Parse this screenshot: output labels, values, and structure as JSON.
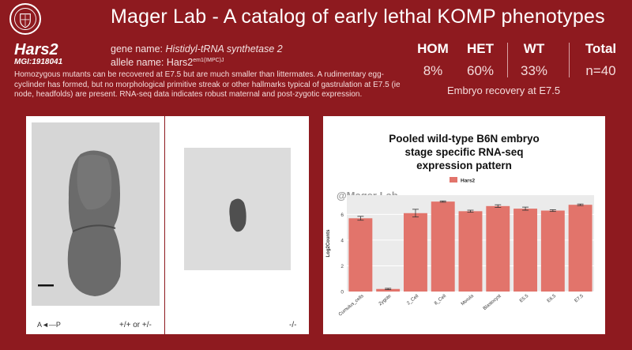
{
  "header": {
    "title": "Mager Lab - A catalog of early lethal KOMP phenotypes"
  },
  "gene": {
    "symbol": "Hars2",
    "mgi_id": "MGI:1918041",
    "name_label": "gene name:",
    "name_value": "Histidyl-tRNA synthetase 2",
    "allele_label": "allele name:",
    "allele_base": "Hars2",
    "allele_sup": "em1(IMPC)J",
    "description": "Homozygous mutants can be recovered at E7.5 but are much smaller than littermates.  A rudimentary egg-cyclinder has formed, but no morphological primitive streak or other hallmarks typical of gastrulation at E7.5 (ie node, headfolds) are present. RNA-seq data indicates robust maternal and post-zygotic expression."
  },
  "stats": {
    "headers": [
      "HOM",
      "HET",
      "WT",
      "Total"
    ],
    "values": [
      "8%",
      "60%",
      "33%",
      "n=40"
    ],
    "caption": "Embryo recovery at E7.5"
  },
  "images": {
    "axis_label": "A◄—P",
    "genotype_left": "+/+ or +/-",
    "genotype_right": "-/-"
  },
  "chart": {
    "title_lines": [
      "Pooled wild-type B6N embryo",
      "stage specific RNA-seq",
      "expression pattern"
    ],
    "watermark": "@Mager Lab"
  },
  "chart_data": {
    "type": "bar",
    "title": "Pooled wild-type B6N embryo stage specific RNA-seq expression pattern",
    "xlabel": "",
    "ylabel": "Log2Counts",
    "categories": [
      "Cumulus_cells",
      "Zygote",
      "2_Cell",
      "8_Cell",
      "Morula",
      "Blastocyst",
      "E5.5",
      "E6.5",
      "E7.5"
    ],
    "series": [
      {
        "name": "Hars2",
        "values": [
          5.7,
          0.2,
          6.1,
          7.0,
          6.25,
          6.65,
          6.45,
          6.3,
          6.75
        ],
        "errors": [
          0.15,
          0.05,
          0.3,
          0.05,
          0.08,
          0.1,
          0.12,
          0.07,
          0.06
        ]
      }
    ],
    "yticks": [
      0,
      2,
      4,
      6
    ],
    "ylim": [
      0,
      7.5
    ],
    "grid": true,
    "legend": "top",
    "color": "#e2746b"
  }
}
